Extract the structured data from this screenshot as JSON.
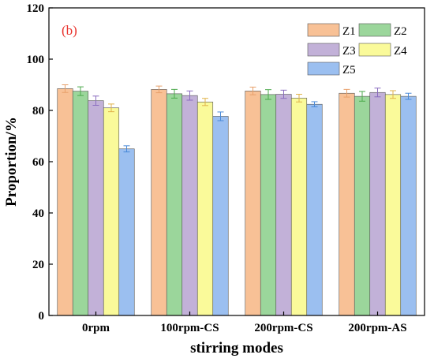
{
  "chart_data": {
    "type": "bar",
    "panel_label": "(b)",
    "xlabel": "stirring modes",
    "ylabel": "Proportion/%",
    "ylim": [
      0,
      120
    ],
    "yticks": [
      0,
      20,
      40,
      60,
      80,
      100,
      120
    ],
    "categories": [
      "0rpm",
      "100rpm-CS",
      "200rpm-CS",
      "200rpm-AS"
    ],
    "series": [
      {
        "name": "Z1",
        "color": "#f8c196",
        "error_color": "#e8a06a",
        "values": [
          88.5,
          88.2,
          87.6,
          86.7
        ],
        "errors": [
          1.5,
          1.3,
          1.5,
          1.5
        ]
      },
      {
        "name": "Z2",
        "color": "#9bd69b",
        "error_color": "#4caa4c",
        "values": [
          87.5,
          86.5,
          86.2,
          85.5
        ],
        "errors": [
          1.7,
          1.7,
          1.9,
          1.9
        ]
      },
      {
        "name": "Z3",
        "color": "#c2b1d8",
        "error_color": "#8a6cbf",
        "values": [
          83.8,
          85.8,
          86.3,
          87.0
        ],
        "errors": [
          1.8,
          1.8,
          1.6,
          1.7
        ]
      },
      {
        "name": "Z4",
        "color": "#fafa9a",
        "error_color": "#e0b24a",
        "values": [
          81.0,
          83.3,
          84.8,
          86.2
        ],
        "errors": [
          1.5,
          1.4,
          1.5,
          1.5
        ]
      },
      {
        "name": "Z5",
        "color": "#9bbff0",
        "error_color": "#4a8ad8",
        "values": [
          65.0,
          77.7,
          82.4,
          85.5
        ],
        "errors": [
          1.2,
          1.7,
          1.0,
          1.2
        ]
      }
    ],
    "legend": {
      "placement": "top-right",
      "columns": 2
    },
    "grid": false
  }
}
